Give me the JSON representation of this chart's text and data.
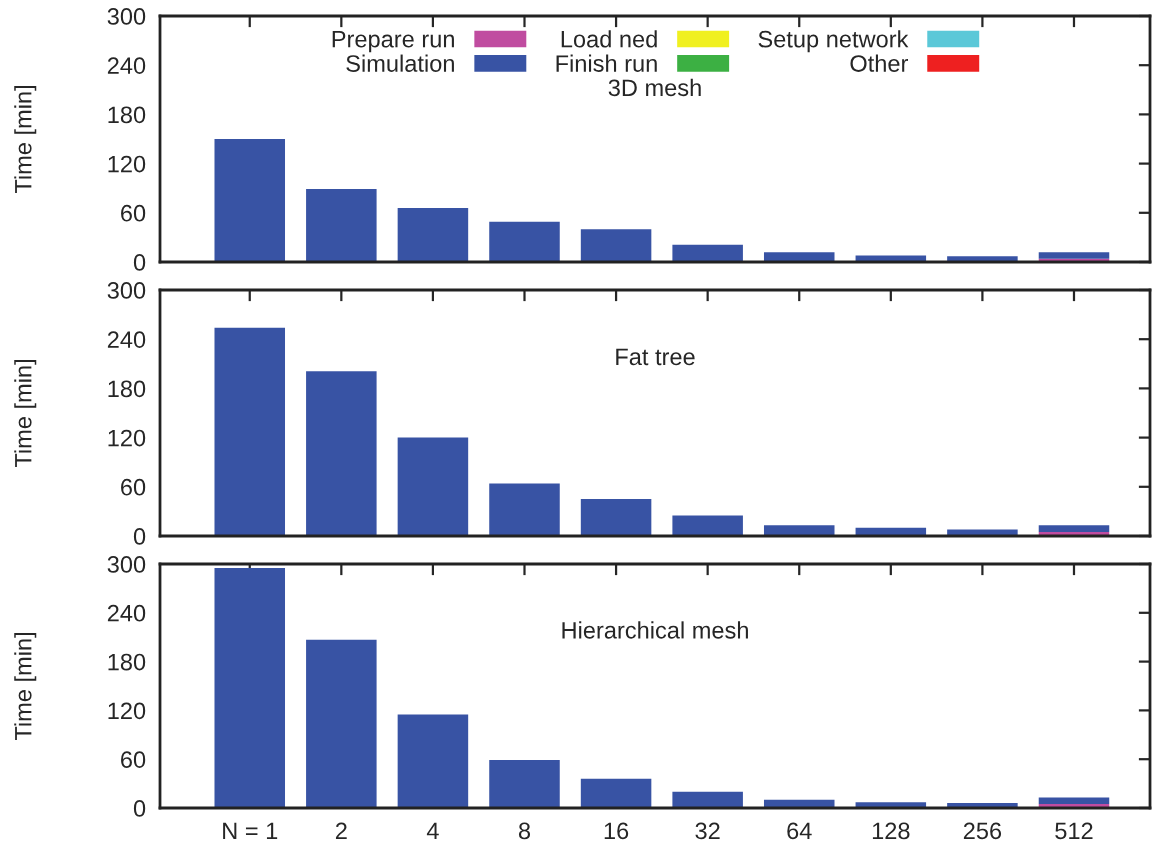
{
  "chart_data": [
    {
      "type": "bar",
      "stacked": true,
      "title": "3D mesh",
      "ylabel": "Time [min]",
      "categories": [
        null,
        null,
        null,
        null,
        null,
        null,
        null,
        null,
        null,
        null
      ],
      "ylim": [
        0,
        300
      ],
      "yticks": [
        0,
        60,
        120,
        180,
        240,
        300
      ],
      "tick_labels": "y",
      "legend": "top",
      "grid": false,
      "series": [
        {
          "name": "Prepare run",
          "color": "#c04ca0",
          "values": [
            null,
            null,
            null,
            null,
            null,
            null,
            null,
            null,
            null,
            4
          ]
        },
        {
          "name": "Load ned",
          "color": "#f0f020",
          "values": [
            null,
            null,
            null,
            null,
            null,
            null,
            null,
            null,
            null,
            null
          ]
        },
        {
          "name": "Setup network",
          "color": "#5bc8d8",
          "values": [
            null,
            null,
            null,
            null,
            null,
            null,
            null,
            null,
            null,
            null
          ]
        },
        {
          "name": "Simulation",
          "color": "#3853a4",
          "values": [
            150,
            89,
            66,
            49,
            40,
            21,
            12,
            8,
            7,
            8
          ]
        },
        {
          "name": "Finish run",
          "color": "#3cb043",
          "values": [
            null,
            null,
            null,
            null,
            null,
            null,
            null,
            null,
            null,
            null
          ]
        },
        {
          "name": "Other",
          "color": "#ee2020",
          "values": [
            null,
            null,
            null,
            null,
            null,
            null,
            null,
            null,
            null,
            null
          ]
        }
      ]
    },
    {
      "type": "bar",
      "stacked": true,
      "title": "Fat tree",
      "ylabel": "Time [min]",
      "categories": [
        null,
        null,
        null,
        null,
        null,
        null,
        null,
        null,
        null,
        null
      ],
      "ylim": [
        0,
        300
      ],
      "yticks": [
        0,
        60,
        120,
        180,
        240,
        300
      ],
      "tick_labels": "y",
      "grid": false,
      "series": [
        {
          "color": "#c04ca0",
          "values": [
            null,
            null,
            null,
            null,
            null,
            null,
            null,
            null,
            null,
            5
          ]
        },
        {
          "color": "#f0f020",
          "values": [
            null,
            null,
            null,
            null,
            null,
            null,
            null,
            null,
            null,
            null
          ]
        },
        {
          "color": "#5bc8d8",
          "values": [
            null,
            null,
            null,
            null,
            null,
            null,
            null,
            null,
            null,
            null
          ]
        },
        {
          "color": "#3853a4",
          "values": [
            254,
            201,
            120,
            64,
            45,
            25,
            13,
            10,
            8,
            8
          ]
        },
        {
          "color": "#3cb043",
          "values": [
            null,
            null,
            null,
            null,
            null,
            null,
            null,
            null,
            null,
            null
          ]
        },
        {
          "color": "#ee2020",
          "values": [
            null,
            null,
            null,
            null,
            null,
            null,
            null,
            null,
            null,
            null
          ]
        }
      ]
    },
    {
      "type": "bar",
      "stacked": true,
      "title": "Hierarchical mesh",
      "ylabel": "Time [min]",
      "categories": [
        "N = 1",
        "2",
        "4",
        "8",
        "16",
        "32",
        "64",
        "128",
        "256",
        "512"
      ],
      "ylim": [
        0,
        300
      ],
      "yticks": [
        0,
        60,
        120,
        180,
        240,
        300
      ],
      "grid": false,
      "series": [
        {
          "color": "#c04ca0",
          "values": [
            null,
            null,
            null,
            null,
            null,
            null,
            null,
            null,
            null,
            5
          ]
        },
        {
          "color": "#f0f020",
          "values": [
            null,
            null,
            null,
            null,
            null,
            null,
            null,
            null,
            null,
            null
          ]
        },
        {
          "color": "#5bc8d8",
          "values": [
            null,
            null,
            null,
            null,
            null,
            null,
            null,
            null,
            null,
            null
          ]
        },
        {
          "color": "#3853a4",
          "values": [
            295,
            207,
            115,
            59,
            36,
            20,
            10,
            7,
            6,
            8
          ]
        },
        {
          "color": "#3cb043",
          "values": [
            null,
            null,
            null,
            null,
            null,
            null,
            null,
            null,
            null,
            null
          ]
        },
        {
          "color": "#ee2020",
          "values": [
            null,
            null,
            null,
            null,
            null,
            null,
            null,
            null,
            null,
            null
          ]
        }
      ]
    }
  ]
}
